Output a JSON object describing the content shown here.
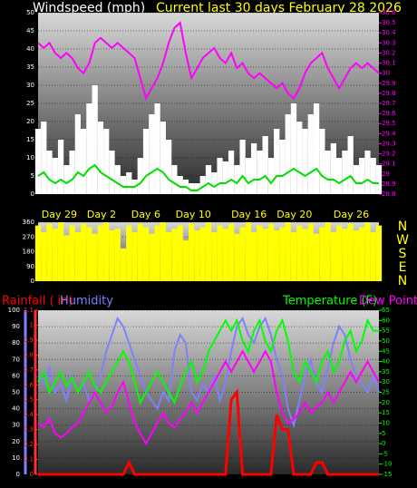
{
  "chart_data": [
    {
      "type": "line",
      "title": "Windspeed (mph)",
      "subtitle": "Current last 30 days February 28 2026",
      "xlim": [
        0,
        30
      ],
      "xticks": [
        {
          "value": 0.3,
          "label": "Day 29"
        },
        {
          "value": 4.3,
          "label": "Day 2"
        },
        {
          "value": 8.2,
          "label": "Day 6"
        },
        {
          "value": 12.1,
          "label": "Day 10"
        },
        {
          "value": 17,
          "label": "Day 16"
        },
        {
          "value": 21,
          "label": "Day 20"
        },
        {
          "value": 26,
          "label": "Day 26"
        }
      ],
      "x": [
        0,
        0.5,
        1,
        1.5,
        2,
        2.5,
        3,
        3.5,
        4,
        4.5,
        5,
        5.5,
        6,
        6.5,
        7,
        7.5,
        8,
        8.5,
        9,
        9.5,
        10,
        10.5,
        11,
        11.5,
        12,
        12.5,
        13,
        13.5,
        14,
        14.5,
        15,
        15.5,
        16,
        16.5,
        17,
        17.5,
        18,
        18.5,
        19,
        19.5,
        20,
        20.5,
        21,
        21.5,
        22,
        22.5,
        23,
        23.5,
        24,
        24.5,
        25,
        25.5,
        26,
        26.5,
        27,
        27.5,
        28,
        28.5,
        29,
        29.5,
        30
      ],
      "ylim": [
        0,
        50
      ],
      "yticks": [
        0,
        5,
        10,
        15,
        20,
        25,
        30,
        35,
        40,
        45,
        50
      ],
      "y2lim": [
        28.8,
        30.6
      ],
      "y2ticks": [
        28.8,
        28.9,
        29,
        29.1,
        29.2,
        29.3,
        29.4,
        29.5,
        29.6,
        29.7,
        29.8,
        29.9,
        30,
        30.1,
        30.2,
        30.3,
        30.4,
        30.5,
        30.6
      ],
      "grid": true,
      "series": [
        {
          "type": "bar",
          "color": "#ffffff",
          "values": [
            18,
            20,
            12,
            10,
            15,
            8,
            12,
            22,
            18,
            25,
            30,
            20,
            18,
            12,
            8,
            5,
            6,
            4,
            10,
            18,
            22,
            25,
            20,
            15,
            8,
            5,
            4,
            3,
            3,
            5,
            8,
            6,
            10,
            9,
            12,
            8,
            15,
            10,
            14,
            12,
            16,
            10,
            18,
            15,
            22,
            25,
            20,
            18,
            22,
            25,
            18,
            12,
            14,
            10,
            12,
            16,
            8,
            10,
            12,
            10,
            8
          ]
        },
        {
          "type": "line",
          "color": "#00e000",
          "values": [
            5,
            6,
            4,
            3,
            4,
            3,
            4,
            6,
            5,
            7,
            8,
            6,
            5,
            4,
            3,
            2,
            2,
            2,
            3,
            5,
            6,
            7,
            6,
            4,
            3,
            2,
            2,
            1,
            1,
            2,
            3,
            2,
            3,
            3,
            4,
            3,
            5,
            3,
            4,
            4,
            5,
            3,
            5,
            5,
            6,
            7,
            6,
            5,
            6,
            7,
            5,
            4,
            4,
            3,
            4,
            5,
            3,
            3,
            4,
            3,
            3
          ]
        },
        {
          "type": "line",
          "color": "#ff00ff",
          "axis": "y2",
          "values": [
            30.3,
            30.25,
            30.3,
            30.2,
            30.15,
            30.2,
            30.15,
            30.05,
            30.0,
            30.1,
            30.3,
            30.35,
            30.3,
            30.25,
            30.3,
            30.25,
            30.2,
            30.15,
            29.95,
            29.75,
            29.85,
            29.95,
            30.1,
            30.3,
            30.45,
            30.5,
            30.2,
            29.95,
            30.05,
            30.15,
            30.2,
            30.25,
            30.15,
            30.1,
            30.2,
            30.05,
            30.1,
            30.0,
            29.95,
            30.0,
            29.95,
            29.9,
            29.85,
            29.9,
            29.8,
            29.75,
            29.85,
            30.0,
            30.1,
            30.15,
            30.2,
            30.05,
            29.95,
            29.85,
            29.95,
            30.05,
            30.1,
            30.05,
            30.1,
            30.05,
            30.0
          ]
        }
      ]
    },
    {
      "type": "bar",
      "xlim": [
        0,
        30
      ],
      "x": [
        0,
        0.5,
        1,
        1.5,
        2,
        2.5,
        3,
        3.5,
        4,
        4.5,
        5,
        5.5,
        6,
        6.5,
        7,
        7.5,
        8,
        8.5,
        9,
        9.5,
        10,
        10.5,
        11,
        11.5,
        12,
        12.5,
        13,
        13.5,
        14,
        14.5,
        15,
        15.5,
        16,
        16.5,
        17,
        17.5,
        18,
        18.5,
        19,
        19.5,
        20,
        20.5,
        21,
        21.5,
        22,
        22.5,
        23,
        23.5,
        24,
        24.5,
        25,
        25.5,
        26,
        26.5,
        27,
        27.5,
        28,
        28.5,
        29,
        29.5,
        30
      ],
      "ylim": [
        0,
        360
      ],
      "yticks": [
        0,
        90,
        180,
        270,
        360
      ],
      "grid": true,
      "annotations": [
        "N",
        "W",
        "S",
        "E",
        "N"
      ],
      "series": [
        {
          "color": "#ffff00",
          "values": [
            340,
            300,
            350,
            320,
            360,
            280,
            340,
            300,
            350,
            330,
            290,
            340,
            360,
            310,
            320,
            200,
            340,
            300,
            350,
            330,
            290,
            340,
            360,
            300,
            320,
            340,
            250,
            350,
            310,
            330,
            360,
            300,
            340,
            320,
            350,
            290,
            330,
            360,
            300,
            340,
            320,
            350,
            310,
            330,
            360,
            300,
            340,
            320,
            350,
            290,
            330,
            360,
            300,
            340,
            320,
            350,
            310,
            330,
            360,
            300,
            340
          ]
        }
      ]
    },
    {
      "type": "line",
      "xlim": [
        0,
        30
      ],
      "x": [
        0,
        0.5,
        1,
        1.5,
        2,
        2.5,
        3,
        3.5,
        4,
        4.5,
        5,
        5.5,
        6,
        6.5,
        7,
        7.5,
        8,
        8.5,
        9,
        9.5,
        10,
        10.5,
        11,
        11.5,
        12,
        12.5,
        13,
        13.5,
        14,
        14.5,
        15,
        15.5,
        16,
        16.5,
        17,
        17.5,
        18,
        18.5,
        19,
        19.5,
        20,
        20.5,
        21,
        21.5,
        22,
        22.5,
        23,
        23.5,
        24,
        24.5,
        25,
        25.5,
        26,
        26.5,
        27,
        27.5,
        28,
        28.5,
        29,
        29.5,
        30
      ],
      "ylim": [
        0,
        100
      ],
      "yticks": [
        0,
        10,
        20,
        30,
        40,
        50,
        60,
        70,
        80,
        90,
        100
      ],
      "y2lim": [
        -15,
        65
      ],
      "y2ticks": [
        -15,
        -10,
        -5,
        0,
        5,
        10,
        15,
        20,
        25,
        30,
        35,
        40,
        45,
        50,
        55,
        60,
        65
      ],
      "y3lim": [
        0,
        1.1
      ],
      "y3ticks": [
        0,
        0.1,
        0.2,
        0.3,
        0.4,
        0.5,
        0.6,
        0.7,
        0.8,
        0.9,
        1,
        1.1
      ],
      "grid": true,
      "series": [
        {
          "name": "Rainfall ( in)",
          "color": "#ff0000",
          "axis": "y3",
          "values": [
            0,
            0,
            0,
            0,
            0,
            0,
            0,
            0,
            0,
            0,
            0,
            0,
            0,
            0,
            0,
            0,
            0.08,
            0,
            0,
            0,
            0,
            0,
            0,
            0,
            0,
            0,
            0,
            0,
            0,
            0,
            0,
            0,
            0,
            0,
            0.5,
            0.55,
            0,
            0,
            0,
            0,
            0,
            0,
            0.4,
            0.3,
            0.3,
            0,
            0,
            0,
            0,
            0.08,
            0.08,
            0,
            0,
            0,
            0,
            0,
            0,
            0,
            0,
            0,
            0
          ]
        },
        {
          "name": "Humidity",
          "color": "#8080ff",
          "values": [
            60,
            55,
            65,
            50,
            55,
            45,
            60,
            50,
            55,
            45,
            50,
            60,
            75,
            85,
            95,
            90,
            80,
            70,
            60,
            50,
            45,
            40,
            50,
            45,
            75,
            85,
            80,
            50,
            45,
            55,
            50,
            60,
            45,
            55,
            75,
            90,
            95,
            85,
            80,
            90,
            95,
            85,
            70,
            60,
            40,
            30,
            45,
            60,
            70,
            55,
            50,
            65,
            80,
            90,
            85,
            70,
            60,
            55,
            50,
            60,
            50
          ]
        },
        {
          "name": "Temperature (F)",
          "color": "#00ff00",
          "axis": "y2",
          "values": [
            30,
            35,
            25,
            30,
            35,
            28,
            32,
            25,
            30,
            35,
            28,
            25,
            30,
            35,
            40,
            45,
            40,
            30,
            20,
            25,
            30,
            35,
            30,
            25,
            20,
            28,
            35,
            40,
            30,
            35,
            45,
            50,
            55,
            60,
            55,
            60,
            50,
            45,
            55,
            60,
            50,
            45,
            55,
            60,
            50,
            35,
            30,
            40,
            35,
            30,
            40,
            45,
            35,
            40,
            50,
            55,
            45,
            50,
            60,
            55,
            55
          ]
        },
        {
          "name": "Dew Point",
          "color": "#ff00ff",
          "axis": "y2",
          "values": [
            10,
            8,
            12,
            5,
            3,
            5,
            8,
            10,
            15,
            20,
            25,
            20,
            15,
            18,
            25,
            30,
            20,
            10,
            5,
            0,
            5,
            10,
            15,
            10,
            8,
            12,
            15,
            20,
            15,
            20,
            25,
            30,
            35,
            40,
            35,
            40,
            45,
            40,
            35,
            40,
            45,
            40,
            25,
            15,
            10,
            12,
            15,
            20,
            15,
            18,
            20,
            25,
            20,
            25,
            30,
            35,
            30,
            35,
            40,
            35,
            30
          ]
        }
      ]
    }
  ]
}
